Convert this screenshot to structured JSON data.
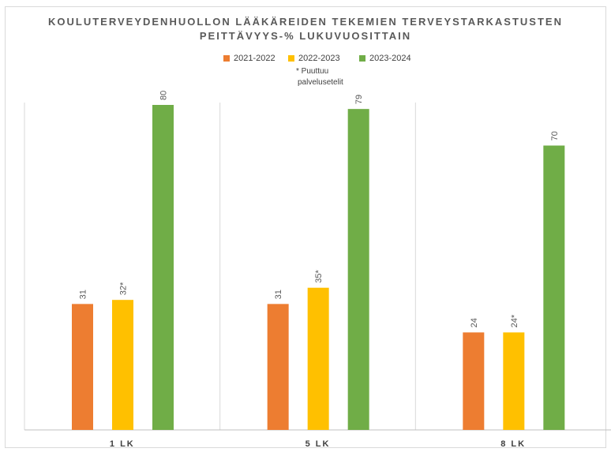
{
  "chart_data": {
    "type": "bar",
    "title_line1": "KOULUTERVEYDENHUOLLON LÄÄKÄREIDEN TEKEMIEN TERVEYSTARKASTUSTEN",
    "title_line2": "PEITTÄVYYS-% LUKUVUOSITTAIN",
    "categories": [
      "1 LK",
      "5 LK",
      "8 LK"
    ],
    "series": [
      {
        "name": "2021-2022",
        "values": [
          31,
          31,
          24
        ],
        "color": "#ed7d31"
      },
      {
        "name": "2022-2023",
        "values": [
          32,
          35,
          24
        ],
        "color": "#ffc000"
      },
      {
        "name": "2023-2024",
        "values": [
          80,
          79,
          70
        ],
        "color": "#70ad47"
      }
    ],
    "data_labels": [
      [
        "31",
        "31",
        "24"
      ],
      [
        "32*",
        "35*",
        "24*"
      ],
      [
        "80",
        "79",
        "70"
      ]
    ],
    "legend_note_line1": "* Puuttuu",
    "legend_note_line2": "palvelusetelit",
    "ylim": [
      0,
      100
    ],
    "grid": false,
    "legend_position": "top"
  }
}
